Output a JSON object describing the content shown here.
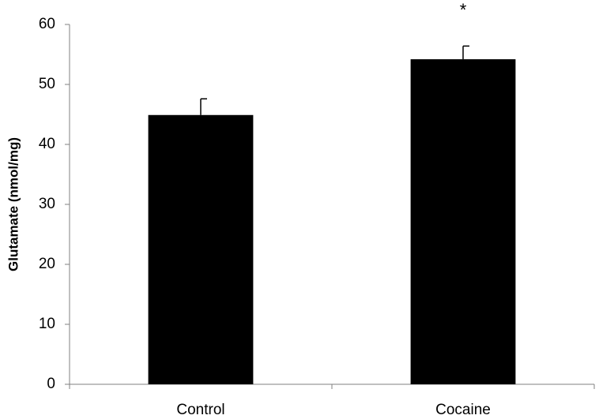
{
  "chart_data": {
    "type": "bar",
    "y_label": "Glutamate (nmol/mg)",
    "categories": [
      "Control",
      "Cocaine"
    ],
    "values": [
      44.9,
      54.2
    ],
    "errors": [
      2.7,
      2.2
    ],
    "color": "#000000",
    "ylim": [
      0,
      60
    ],
    "yticks": [
      0,
      10,
      20,
      30,
      40,
      50,
      60
    ],
    "grid": false,
    "annotations": [
      {
        "text": "*",
        "category": "Cocaine"
      }
    ]
  }
}
